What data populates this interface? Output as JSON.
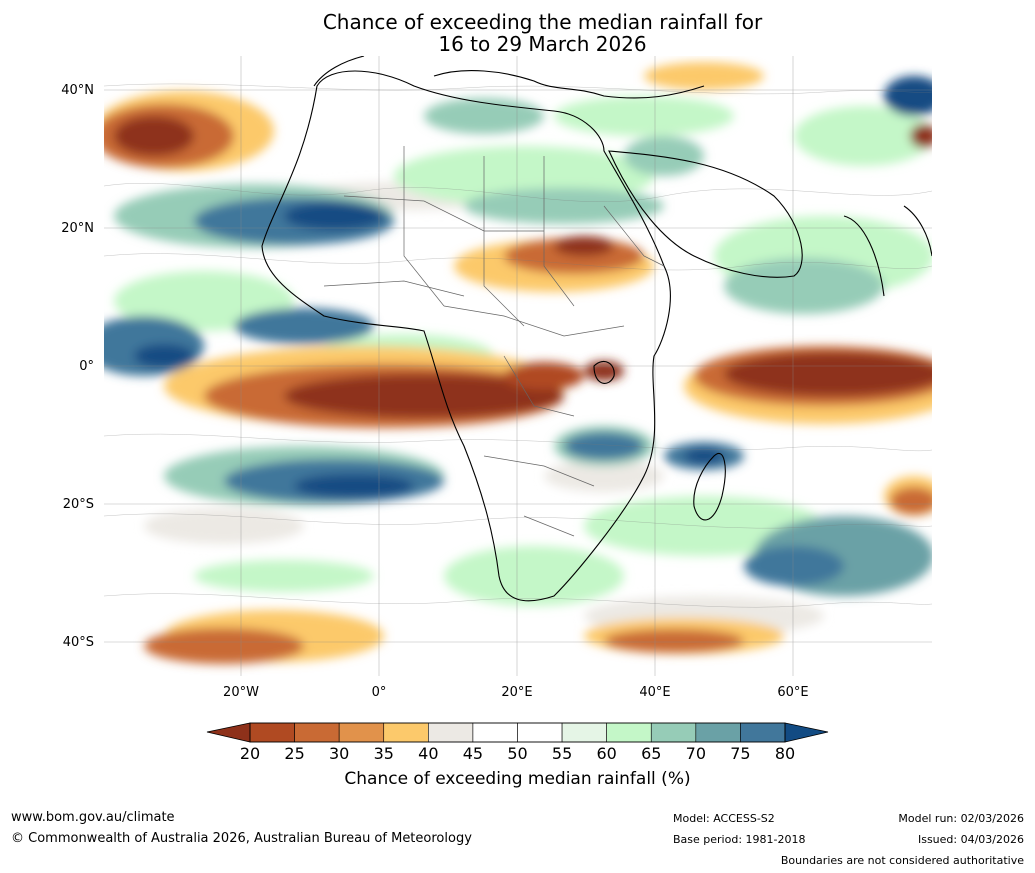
{
  "title_line1": "Chance of exceeding the median rainfall for",
  "title_line2": "16 to 29 March 2026",
  "lat_labels": [
    "40°N",
    "20°N",
    "0°",
    "20°S",
    "40°S"
  ],
  "lon_labels": [
    "20°W",
    "0°",
    "20°E",
    "40°E",
    "60°E"
  ],
  "colorbar": {
    "label": "Chance of exceeding median rainfall (%)",
    "ticks": [
      "20",
      "25",
      "30",
      "35",
      "40",
      "45",
      "50",
      "55",
      "60",
      "65",
      "70",
      "75",
      "80"
    ],
    "colors": [
      "#8e311a",
      "#b04a22",
      "#c96a34",
      "#e1924b",
      "#fcc96b",
      "#ece9e4",
      "#ffffff",
      "#ffffff",
      "#e5f5e6",
      "#c4f7c8",
      "#96ccb7",
      "#6aa1a6",
      "#41779b",
      "#124b83"
    ]
  },
  "footer": {
    "website": "www.bom.gov.au/climate",
    "copyright": "© Commonwealth of Australia 2026, Australian Bureau of Meteorology",
    "model": "Model: ACCESS-S2",
    "base_period": "Base period: 1981-2018",
    "model_run": "Model run: 02/03/2026",
    "issued": "Issued: 04/03/2026",
    "disclaimer": "Boundaries are not considered authoritative"
  }
}
